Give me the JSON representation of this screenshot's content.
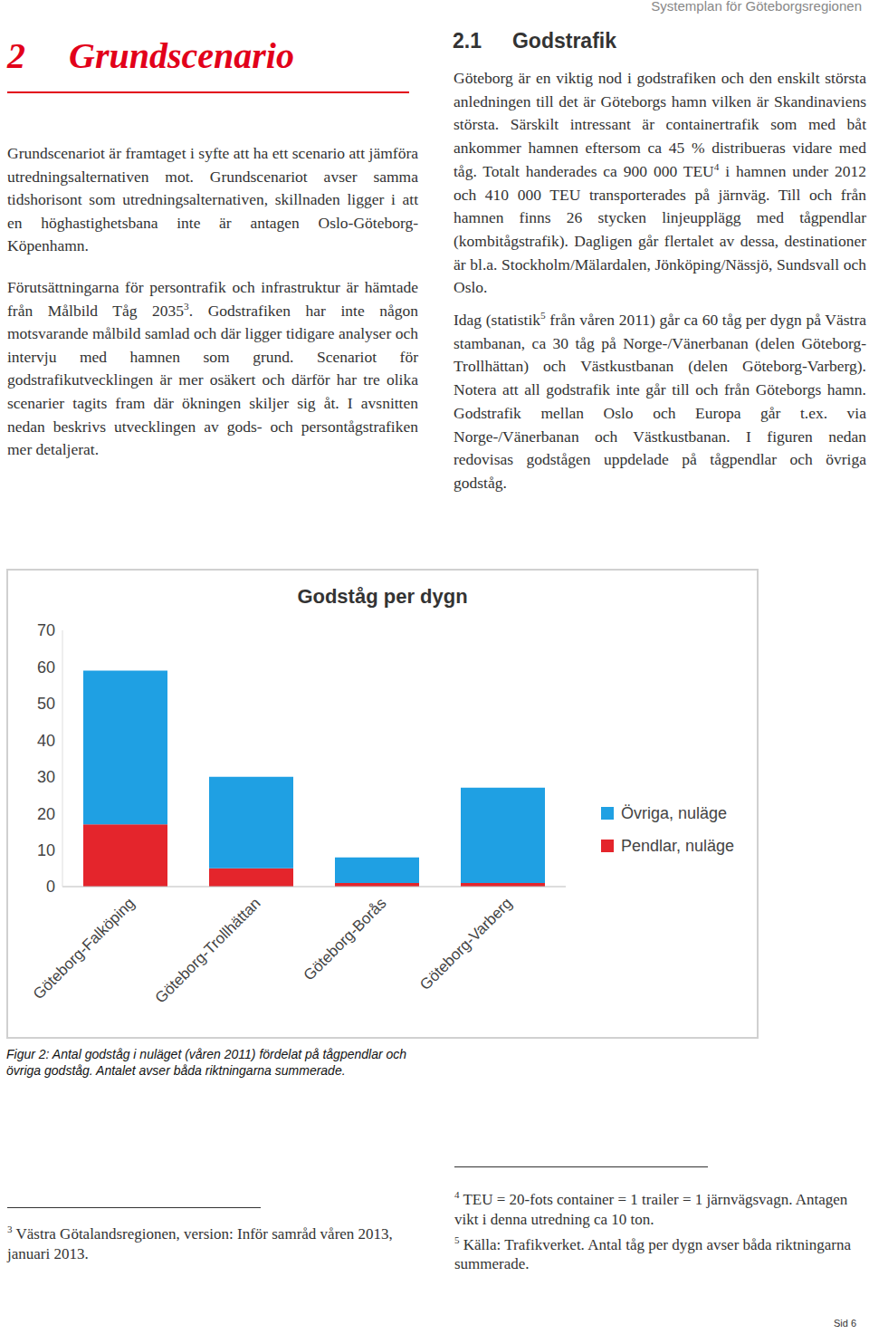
{
  "header": {
    "running_title": "Systemplan för Göteborgsregionen"
  },
  "left": {
    "heading_number": "2",
    "heading": "Grundscenario",
    "paragraphs": [
      [
        "Grundscenariot är framtaget i syfte att ha ett scenario att jämföra utredningsalternativen mot. Grundscenariot avser samma tidshorisont som utredningsalternativen, skillnaden ligger i att en höghastighetsbana inte är antagen Oslo-Göteborg-Köpenhamn."
      ],
      [
        "Förutsättningarna för persontrafik och infrastruktur är hämtade från Målbild Tåg 2035",
        {
          "sup": "3"
        },
        ". Godstrafiken har inte någon motsvarande målbild samlad och där ligger tidigare analyser och intervju med hamnen som grund. Scenariot för godstrafikutvecklingen är mer osäkert och därför har tre olika scenarier tagits fram där ökningen skiljer sig åt. I avsnitten nedan beskrivs utvecklingen av gods- och persontågstrafiken mer detaljerat."
      ]
    ]
  },
  "right": {
    "section_number": "2.1",
    "section_title": "Godstrafik",
    "paragraphs": [
      [
        "Göteborg är en viktig nod i godstrafiken och den enskilt största anledningen till det är Göteborgs hamn vilken är Skandinaviens största. Särskilt intressant är containertrafik som med båt ankommer hamnen eftersom ca 45 % distribueras vidare med tåg. Totalt handerades ca 900 000 TEU",
        {
          "sup": "4"
        },
        " i hamnen under 2012 och 410 000 TEU transporterades på järnväg. Till och från hamnen finns 26 stycken linjeupplägg med tågpendlar (kombitågstrafik). Dagligen går flertalet av dessa, destinationer är bl.a. Stockholm/Mälardalen, Jönköping/Nässjö, Sundsvall och Oslo."
      ],
      [
        "Idag (statistik",
        {
          "sup": "5"
        },
        " från våren 2011) går ca 60 tåg per dygn på Västra stambanan, ca 30 tåg på Norge-/Vänerbanan (delen Göteborg-Trollhättan) och Västkustbanan (delen Göteborg-Varberg). Notera att all godstrafik inte går till och från Göteborgs hamn. Godstrafik mellan Oslo och Europa går t.ex. via Norge-/Vänerbanan och Västkustbanan. I figuren nedan redovisas godstågen uppdelade på tågpendlar och övriga godståg."
      ]
    ]
  },
  "chart_data": {
    "type": "bar",
    "title": "Godståg per dygn",
    "stacked": true,
    "grid": false,
    "legend": "right",
    "categories": [
      "Göteborg-Falköping",
      "Göteborg-Trollhättan",
      "Göteborg-Borås",
      "Göteborg-Varberg"
    ],
    "series": [
      {
        "name": "Övriga, nuläge",
        "color": "#1fa0e3",
        "values": [
          42,
          25,
          7,
          26
        ]
      },
      {
        "name": "Pendlar, nuläge",
        "color": "#e4252c",
        "values": [
          17,
          5,
          1,
          1
        ]
      }
    ],
    "ylim": [
      0,
      70
    ],
    "yticks": [
      0,
      10,
      20,
      30,
      40,
      50,
      60,
      70
    ]
  },
  "caption": "Figur 2: Antal godståg i nuläget (våren 2011) fördelat på tågpendlar och övriga godståg. Antalet avser båda riktningarna summerade.",
  "footnotes_left": [
    {
      "number": "3",
      "text": "Västra Götalandsregionen, version: Inför samråd våren 2013, januari 2013."
    }
  ],
  "footnotes_right": [
    {
      "number": "4",
      "text": "TEU = 20-fots container = 1 trailer = 1 järnvägsvagn. Antagen vikt i denna utredning ca 10 ton."
    },
    {
      "number": "5",
      "text": "Källa: Trafikverket. Antal tåg per dygn avser båda riktningarna summerade."
    }
  ],
  "page": "Sid 6"
}
